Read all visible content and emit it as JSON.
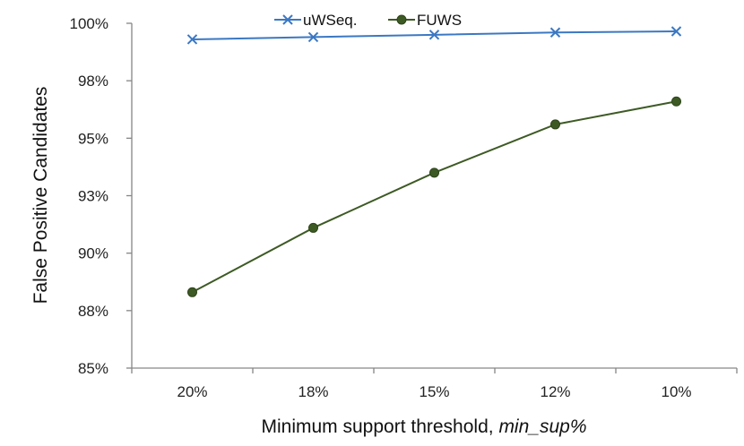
{
  "chart_data": {
    "type": "line",
    "title": "",
    "xlabel": "Minimum support threshold, ",
    "xlabel_italic": "min_sup%",
    "ylabel": "False Positive Candidates",
    "categories": [
      "20%",
      "18%",
      "15%",
      "12%",
      "10%"
    ],
    "y_ticks": [
      "85%",
      "88%",
      "90%",
      "93%",
      "95%",
      "98%",
      "100%"
    ],
    "ylim": [
      85,
      100
    ],
    "y_step": 2.5,
    "grid": false,
    "legend": "top-center",
    "series": [
      {
        "name": "uWSeq.",
        "marker": "x",
        "color": "#3b78c3",
        "values": [
          99.3,
          99.4,
          99.5,
          99.6,
          99.65
        ]
      },
      {
        "name": "FUWS",
        "marker": "circle",
        "color": "#3d5a24",
        "values": [
          88.3,
          91.1,
          93.5,
          95.6,
          96.6
        ]
      }
    ]
  }
}
